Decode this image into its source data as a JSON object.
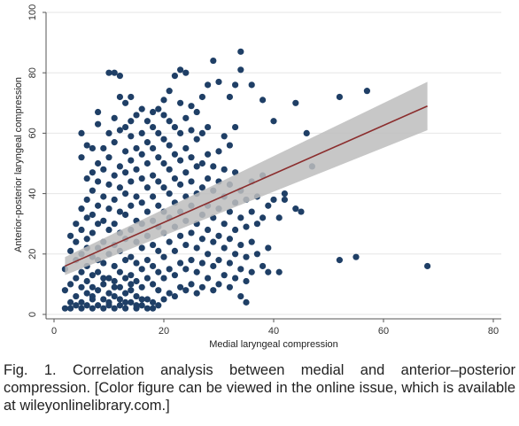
{
  "chart_data": {
    "type": "scatter",
    "xlabel": "Medial laryngeal compression",
    "ylabel": "Anterior-posterior laryngeal compression",
    "xlim": [
      0,
      80
    ],
    "ylim": [
      0,
      100
    ],
    "xticks": [
      "0",
      "20",
      "40",
      "60",
      "80"
    ],
    "yticks": [
      "0",
      "20",
      "40",
      "60",
      "80",
      "100"
    ],
    "grid": "horizontal",
    "colors": {
      "points": "#1f3f66",
      "fit_line": "#8b2d2d",
      "ci_band": "#bdbdbd"
    },
    "fit": {
      "x": [
        2,
        68
      ],
      "y": [
        16,
        69
      ],
      "ci_halfwidth": [
        3,
        8
      ]
    },
    "points": [
      [
        2,
        2
      ],
      [
        2,
        8
      ],
      [
        2,
        15
      ],
      [
        3,
        21
      ],
      [
        3,
        4
      ],
      [
        3,
        10
      ],
      [
        3,
        26
      ],
      [
        3,
        2
      ],
      [
        4,
        3
      ],
      [
        4,
        12
      ],
      [
        4,
        18
      ],
      [
        4,
        30
      ],
      [
        4,
        6
      ],
      [
        4,
        24
      ],
      [
        5,
        2
      ],
      [
        5,
        9
      ],
      [
        5,
        14
      ],
      [
        5,
        28
      ],
      [
        5,
        35
      ],
      [
        5,
        52
      ],
      [
        5,
        60
      ],
      [
        5,
        4
      ],
      [
        5,
        20
      ],
      [
        6,
        3
      ],
      [
        6,
        7
      ],
      [
        6,
        11
      ],
      [
        6,
        16
      ],
      [
        6,
        25
      ],
      [
        6,
        32
      ],
      [
        6,
        38
      ],
      [
        6,
        45
      ],
      [
        6,
        56
      ],
      [
        6,
        22
      ],
      [
        7,
        2
      ],
      [
        7,
        6
      ],
      [
        7,
        9
      ],
      [
        7,
        13
      ],
      [
        7,
        19
      ],
      [
        7,
        27
      ],
      [
        7,
        33
      ],
      [
        7,
        41
      ],
      [
        7,
        47
      ],
      [
        7,
        55
      ],
      [
        7,
        5
      ],
      [
        8,
        3
      ],
      [
        8,
        8
      ],
      [
        8,
        14
      ],
      [
        8,
        22
      ],
      [
        8,
        30
      ],
      [
        8,
        36
      ],
      [
        8,
        44
      ],
      [
        8,
        50
      ],
      [
        8,
        63
      ],
      [
        8,
        67
      ],
      [
        8,
        18
      ],
      [
        9,
        2
      ],
      [
        9,
        5
      ],
      [
        9,
        10
      ],
      [
        9,
        17
      ],
      [
        9,
        24
      ],
      [
        9,
        31
      ],
      [
        9,
        39
      ],
      [
        9,
        48
      ],
      [
        9,
        55
      ],
      [
        9,
        12
      ],
      [
        10,
        3
      ],
      [
        10,
        7
      ],
      [
        10,
        12
      ],
      [
        10,
        20
      ],
      [
        10,
        28
      ],
      [
        10,
        35
      ],
      [
        10,
        43
      ],
      [
        10,
        52
      ],
      [
        10,
        60
      ],
      [
        10,
        80
      ],
      [
        10,
        4
      ],
      [
        11,
        2
      ],
      [
        11,
        6
      ],
      [
        11,
        11
      ],
      [
        11,
        16
      ],
      [
        11,
        23
      ],
      [
        11,
        30
      ],
      [
        11,
        38
      ],
      [
        11,
        46
      ],
      [
        11,
        57
      ],
      [
        11,
        65
      ],
      [
        11,
        80
      ],
      [
        11,
        9
      ],
      [
        12,
        3
      ],
      [
        12,
        5
      ],
      [
        12,
        9
      ],
      [
        12,
        14
      ],
      [
        12,
        21
      ],
      [
        12,
        27
      ],
      [
        12,
        34
      ],
      [
        12,
        42
      ],
      [
        12,
        49
      ],
      [
        12,
        61
      ],
      [
        12,
        72
      ],
      [
        12,
        79
      ],
      [
        13,
        2
      ],
      [
        13,
        7
      ],
      [
        13,
        12
      ],
      [
        13,
        18
      ],
      [
        13,
        25
      ],
      [
        13,
        33
      ],
      [
        13,
        40
      ],
      [
        13,
        47
      ],
      [
        13,
        54
      ],
      [
        13,
        62
      ],
      [
        13,
        70
      ],
      [
        13,
        4
      ],
      [
        14,
        4
      ],
      [
        14,
        8
      ],
      [
        14,
        13
      ],
      [
        14,
        19
      ],
      [
        14,
        28
      ],
      [
        14,
        36
      ],
      [
        14,
        44
      ],
      [
        14,
        51
      ],
      [
        14,
        59
      ],
      [
        14,
        64
      ],
      [
        14,
        72
      ],
      [
        14,
        10
      ],
      [
        15,
        2
      ],
      [
        15,
        6
      ],
      [
        15,
        11
      ],
      [
        15,
        17
      ],
      [
        15,
        24
      ],
      [
        15,
        31
      ],
      [
        15,
        39
      ],
      [
        15,
        48
      ],
      [
        15,
        55
      ],
      [
        15,
        66
      ],
      [
        15,
        3
      ],
      [
        16,
        3
      ],
      [
        16,
        9
      ],
      [
        16,
        15
      ],
      [
        16,
        22
      ],
      [
        16,
        30
      ],
      [
        16,
        37
      ],
      [
        16,
        45
      ],
      [
        16,
        53
      ],
      [
        16,
        60
      ],
      [
        16,
        68
      ],
      [
        16,
        5
      ],
      [
        17,
        2
      ],
      [
        17,
        5
      ],
      [
        17,
        12
      ],
      [
        17,
        18
      ],
      [
        17,
        26
      ],
      [
        17,
        34
      ],
      [
        17,
        42
      ],
      [
        17,
        50
      ],
      [
        17,
        57
      ],
      [
        17,
        64
      ],
      [
        18,
        4
      ],
      [
        18,
        10
      ],
      [
        18,
        16
      ],
      [
        18,
        23
      ],
      [
        18,
        31
      ],
      [
        18,
        39
      ],
      [
        18,
        46
      ],
      [
        18,
        55
      ],
      [
        18,
        62
      ],
      [
        18,
        67
      ],
      [
        18,
        2
      ],
      [
        19,
        3
      ],
      [
        19,
        8
      ],
      [
        19,
        14
      ],
      [
        19,
        21
      ],
      [
        19,
        29
      ],
      [
        19,
        36
      ],
      [
        19,
        44
      ],
      [
        19,
        52
      ],
      [
        19,
        60
      ],
      [
        19,
        68
      ],
      [
        20,
        5
      ],
      [
        20,
        12
      ],
      [
        20,
        19
      ],
      [
        20,
        27
      ],
      [
        20,
        34
      ],
      [
        20,
        42
      ],
      [
        20,
        50
      ],
      [
        20,
        58
      ],
      [
        20,
        66
      ],
      [
        20,
        71
      ],
      [
        21,
        7
      ],
      [
        21,
        15
      ],
      [
        21,
        24
      ],
      [
        21,
        32
      ],
      [
        21,
        40
      ],
      [
        21,
        48
      ],
      [
        21,
        56
      ],
      [
        21,
        64
      ],
      [
        21,
        74
      ],
      [
        22,
        6
      ],
      [
        22,
        13
      ],
      [
        22,
        21
      ],
      [
        22,
        29
      ],
      [
        22,
        37
      ],
      [
        22,
        45
      ],
      [
        22,
        53
      ],
      [
        22,
        62
      ],
      [
        22,
        79
      ],
      [
        23,
        9
      ],
      [
        23,
        17
      ],
      [
        23,
        26
      ],
      [
        23,
        34
      ],
      [
        23,
        43
      ],
      [
        23,
        51
      ],
      [
        23,
        60
      ],
      [
        23,
        70
      ],
      [
        23,
        81
      ],
      [
        24,
        8
      ],
      [
        24,
        15
      ],
      [
        24,
        23
      ],
      [
        24,
        31
      ],
      [
        24,
        39
      ],
      [
        24,
        47
      ],
      [
        24,
        55
      ],
      [
        24,
        65
      ],
      [
        24,
        80
      ],
      [
        25,
        10
      ],
      [
        25,
        18
      ],
      [
        25,
        27
      ],
      [
        25,
        36
      ],
      [
        25,
        44
      ],
      [
        25,
        52
      ],
      [
        25,
        61
      ],
      [
        25,
        69
      ],
      [
        26,
        7
      ],
      [
        26,
        14
      ],
      [
        26,
        22
      ],
      [
        26,
        30
      ],
      [
        26,
        40
      ],
      [
        26,
        49
      ],
      [
        26,
        58
      ],
      [
        26,
        67
      ],
      [
        27,
        9
      ],
      [
        27,
        17
      ],
      [
        27,
        25
      ],
      [
        27,
        33
      ],
      [
        27,
        42
      ],
      [
        27,
        50
      ],
      [
        27,
        60
      ],
      [
        27,
        72
      ],
      [
        28,
        12
      ],
      [
        28,
        20
      ],
      [
        28,
        28
      ],
      [
        28,
        36
      ],
      [
        28,
        45
      ],
      [
        28,
        53
      ],
      [
        28,
        62
      ],
      [
        28,
        76
      ],
      [
        29,
        8
      ],
      [
        29,
        16
      ],
      [
        29,
        24
      ],
      [
        29,
        32
      ],
      [
        29,
        41
      ],
      [
        29,
        49
      ],
      [
        29,
        84
      ],
      [
        30,
        10
      ],
      [
        30,
        18
      ],
      [
        30,
        26
      ],
      [
        30,
        35
      ],
      [
        30,
        44
      ],
      [
        30,
        54
      ],
      [
        30,
        77
      ],
      [
        31,
        13
      ],
      [
        31,
        22
      ],
      [
        31,
        30
      ],
      [
        31,
        39
      ],
      [
        31,
        48
      ],
      [
        31,
        59
      ],
      [
        32,
        9
      ],
      [
        32,
        17
      ],
      [
        32,
        25
      ],
      [
        32,
        34
      ],
      [
        32,
        43
      ],
      [
        32,
        56
      ],
      [
        32,
        72
      ],
      [
        33,
        12
      ],
      [
        33,
        20
      ],
      [
        33,
        28
      ],
      [
        33,
        37
      ],
      [
        33,
        47
      ],
      [
        33,
        62
      ],
      [
        33,
        76
      ],
      [
        34,
        6
      ],
      [
        34,
        15
      ],
      [
        34,
        23
      ],
      [
        34,
        32
      ],
      [
        34,
        41
      ],
      [
        34,
        81
      ],
      [
        34,
        87
      ],
      [
        35,
        11
      ],
      [
        35,
        19
      ],
      [
        35,
        29
      ],
      [
        35,
        38
      ],
      [
        35,
        4
      ],
      [
        36,
        14
      ],
      [
        36,
        24
      ],
      [
        36,
        34
      ],
      [
        36,
        44
      ],
      [
        36,
        76
      ],
      [
        37,
        20
      ],
      [
        37,
        30
      ],
      [
        37,
        39
      ],
      [
        38,
        16
      ],
      [
        38,
        32
      ],
      [
        38,
        46
      ],
      [
        38,
        71
      ],
      [
        39,
        22
      ],
      [
        39,
        36
      ],
      [
        39,
        14
      ],
      [
        40,
        38
      ],
      [
        40,
        64
      ],
      [
        41,
        32
      ],
      [
        41,
        14
      ],
      [
        42,
        40
      ],
      [
        42,
        38
      ],
      [
        44,
        35
      ],
      [
        44,
        70
      ],
      [
        45,
        34
      ],
      [
        46,
        60
      ],
      [
        47,
        49
      ],
      [
        52,
        72
      ],
      [
        52,
        18
      ],
      [
        55,
        19
      ],
      [
        57,
        74
      ],
      [
        68,
        16
      ]
    ]
  },
  "caption": {
    "text": "Fig. 1. Correlation analysis between medial and anterior–posterior compression. [Color figure can be viewed in the online issue, which is available at wileyonlinelibrary.com.]"
  }
}
